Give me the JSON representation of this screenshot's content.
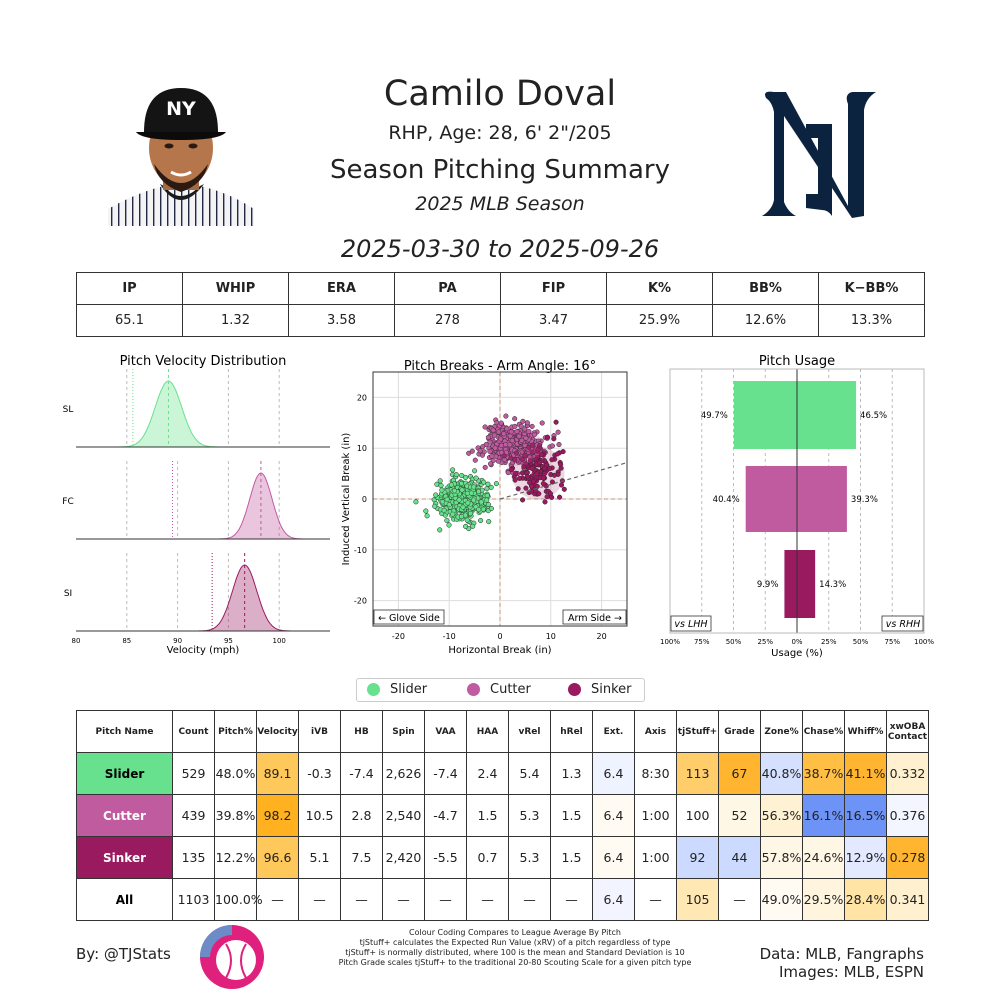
{
  "header": {
    "name": "Camilo Doval",
    "bio": "RHP, Age: 28, 6' 2\"/205",
    "summary_title": "Season Pitching Summary",
    "season": "2025 MLB Season",
    "date_range": "2025-03-30 to 2025-09-26"
  },
  "stats": {
    "headers": [
      "IP",
      "WHIP",
      "ERA",
      "PA",
      "FIP",
      "K%",
      "BB%",
      "K−BB%"
    ],
    "values": [
      "65.1",
      "1.32",
      "3.58",
      "278",
      "3.47",
      "25.9%",
      "12.6%",
      "13.3%"
    ]
  },
  "colors": {
    "slider": "#67e18d",
    "cutter": "#c15ba0",
    "sinker": "#9a1a60"
  },
  "chart_data": [
    {
      "type": "area",
      "title": "Pitch Velocity Distribution",
      "xlabel": "Velocity (mph)",
      "xlim": [
        80,
        105
      ],
      "xticks": [
        "80",
        "85",
        "90",
        "95",
        "100"
      ],
      "series": [
        {
          "name": "SL",
          "color": "#67e18d",
          "mean": 89.1,
          "sd": 1.3,
          "league_avg": 85.6,
          "ref_lines": [
            85,
            95,
            100,
            85.6,
            89.1
          ]
        },
        {
          "name": "FC",
          "color": "#c15ba0",
          "mean": 98.2,
          "sd": 1.1,
          "league_avg": 89.5,
          "ref_lines": [
            85,
            90,
            95,
            100,
            89.5,
            98.2
          ]
        },
        {
          "name": "SI",
          "color": "#9a1a60",
          "mean": 96.6,
          "sd": 1.2,
          "league_avg": 93.4,
          "ref_lines": [
            85,
            90,
            95,
            100,
            93.4,
            96.6
          ]
        }
      ]
    },
    {
      "type": "scatter",
      "title": "Pitch Breaks - Arm Angle: 16°",
      "xlabel": "Horizontal Break (in)",
      "ylabel": "Induced Vertical Break (in)",
      "xlim": [
        -25,
        25
      ],
      "ylim": [
        -25,
        25
      ],
      "xticks": [
        "-20",
        "-10",
        "0",
        "10",
        "20"
      ],
      "yticks": [
        "-20",
        "-10",
        "0",
        "10",
        "20"
      ],
      "arm_angle_deg": 16,
      "corner_left": "← Glove Side",
      "corner_right": "Arm Side →",
      "series": [
        {
          "name": "Slider",
          "color": "#67e18d",
          "mean_x": -7.4,
          "mean_y": -0.3,
          "sd_x": 2.4,
          "sd_y": 2.0,
          "n": 529
        },
        {
          "name": "Cutter",
          "color": "#c15ba0",
          "mean_x": 2.8,
          "mean_y": 10.5,
          "sd_x": 2.8,
          "sd_y": 2.0,
          "n": 439
        },
        {
          "name": "Sinker",
          "color": "#9a1a60",
          "mean_x": 7.5,
          "mean_y": 5.1,
          "sd_x": 2.6,
          "sd_y": 2.6,
          "n": 135
        }
      ]
    },
    {
      "type": "bar",
      "title": "Pitch Usage",
      "xlabel": "Usage (%)",
      "left_label": "vs LHH",
      "right_label": "vs RHH",
      "xticks": [
        "100%",
        "75%",
        "50%",
        "25%",
        "0%",
        "25%",
        "50%",
        "75%",
        "100%"
      ],
      "categories": [
        "Slider",
        "Cutter",
        "Sinker"
      ],
      "series": [
        {
          "name": "vs LHH",
          "values": [
            49.7,
            40.4,
            9.9
          ]
        },
        {
          "name": "vs RHH",
          "values": [
            46.5,
            39.3,
            14.3
          ]
        }
      ],
      "value_labels_left": [
        "49.7%",
        "40.4%",
        "9.9%"
      ],
      "value_labels_right": [
        "46.5%",
        "39.3%",
        "14.3%"
      ]
    }
  ],
  "legend": [
    "Slider",
    "Cutter",
    "Sinker"
  ],
  "pitch_table": {
    "headers": [
      "Pitch Name",
      "Count",
      "Pitch%",
      "Velocity",
      "iVB",
      "HB",
      "Spin",
      "VAA",
      "HAA",
      "vRel",
      "hRel",
      "Ext.",
      "Axis",
      "tjStuff+",
      "Grade",
      "Zone%",
      "Chase%",
      "Whiff%",
      "xwOBA Contact"
    ],
    "rows": [
      {
        "name": "Slider",
        "name_bg": "#67e18d",
        "name_color": "#000000",
        "cells": [
          "529",
          "48.0%",
          "89.1",
          "-0.3",
          "-7.4",
          "2,626",
          "-7.4",
          "2.4",
          "5.4",
          "1.3",
          "6.4",
          "8:30",
          "113",
          "67",
          "40.8%",
          "38.7%",
          "41.1%",
          "0.332"
        ],
        "bgs": [
          "",
          "",
          "#ffc85a",
          "",
          "",
          "",
          "",
          "",
          "",
          "",
          "#eef3ff",
          "",
          "#ffcd6a",
          "#ffb52f",
          "#d5e0ff",
          "#ffbf45",
          "#ffb52f",
          "#fff1cf"
        ]
      },
      {
        "name": "Cutter",
        "name_bg": "#c15ba0",
        "name_color": "#ffffff",
        "cells": [
          "439",
          "39.8%",
          "98.2",
          "10.5",
          "2.8",
          "2,540",
          "-4.7",
          "1.5",
          "5.3",
          "1.5",
          "6.4",
          "1:00",
          "100",
          "52",
          "56.3%",
          "16.1%",
          "16.5%",
          "0.376"
        ],
        "bgs": [
          "",
          "",
          "#ffb11f",
          "",
          "",
          "",
          "",
          "",
          "",
          "",
          "#fffbf2",
          "",
          "",
          "#fff7e6",
          "#fff2d4",
          "#6e93f7",
          "#6e93f7",
          "#f4f6ff"
        ]
      },
      {
        "name": "Sinker",
        "name_bg": "#9a1a60",
        "name_color": "#ffffff",
        "cells": [
          "135",
          "12.2%",
          "96.6",
          "5.1",
          "7.5",
          "2,420",
          "-5.5",
          "0.7",
          "5.3",
          "1.5",
          "6.4",
          "1:00",
          "92",
          "44",
          "57.8%",
          "24.6%",
          "12.9%",
          "0.278"
        ],
        "bgs": [
          "",
          "",
          "#ffc85a",
          "",
          "",
          "",
          "",
          "",
          "",
          "",
          "#fffbf2",
          "",
          "#ccdaff",
          "#ccdaff",
          "#fff7e6",
          "#fff7e6",
          "#e3eaff",
          "#ffb52f"
        ]
      },
      {
        "name": "All",
        "name_bg": "",
        "name_color": "#000000",
        "cells": [
          "1103",
          "100.0%",
          "—",
          "—",
          "—",
          "—",
          "—",
          "—",
          "—",
          "—",
          "6.4",
          "—",
          "105",
          "—",
          "49.0%",
          "29.5%",
          "28.4%",
          "0.341"
        ],
        "bgs": [
          "",
          "",
          "",
          "",
          "",
          "",
          "",
          "",
          "",
          "",
          "#f2f5ff",
          "",
          "#ffe8b4",
          "",
          "#fffbf2",
          "#fff5df",
          "#ffe4a6",
          "#fff1cf"
        ]
      }
    ]
  },
  "footer": {
    "byline": "By: @TJStats",
    "notes": [
      "Colour Coding Compares to League Average By Pitch",
      "tjStuff+ calculates the Expected Run Value (xRV) of a pitch regardless of type",
      "tjStuff+ is normally distributed, where 100 is the mean and Standard Deviation is 10",
      "Pitch Grade scales tjStuff+ to the traditional 20-80 Scouting Scale for a given pitch type"
    ],
    "data_source": "Data: MLB, Fangraphs",
    "images_source": "Images: MLB, ESPN"
  }
}
